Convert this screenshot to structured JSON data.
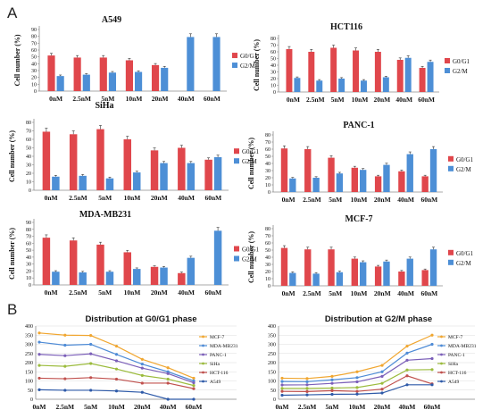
{
  "panel_labels": [
    "A",
    "B"
  ],
  "colors": {
    "g0": "#e0474c",
    "g2": "#4d8fd6",
    "err": "#333333",
    "axis": "#8c8c8c",
    "grid": "#dddddd",
    "line_colors": [
      "#f0a630",
      "#4e8bd6",
      "#7b5fb8",
      "#9bbb3c",
      "#c0504d",
      "#2e5aa8"
    ]
  },
  "chart_data": [
    {
      "type": "bar",
      "panel": "A",
      "title": "A549",
      "categories": [
        "0nM",
        "2.5nM",
        "5nM",
        "10nM",
        "20nM",
        "40nM",
        "60nM"
      ],
      "ylabel": "Cell number (%)",
      "ylim": [
        0,
        90
      ],
      "yticks": [
        0,
        10,
        20,
        30,
        40,
        50,
        60,
        70,
        80,
        90
      ],
      "series": [
        {
          "name": "G0/G1",
          "values": [
            52,
            49,
            49,
            45,
            38,
            null,
            null
          ]
        },
        {
          "name": "G2/M",
          "values": [
            22,
            24,
            27,
            28,
            34,
            79,
            79
          ]
        }
      ]
    },
    {
      "type": "bar",
      "panel": "A",
      "title": "HCT116",
      "categories": [
        "0nM",
        "2.5nM",
        "5nM",
        "10nM",
        "20nM",
        "40nM",
        "60nM"
      ],
      "ylabel": "Cell number (%)",
      "ylim": [
        0,
        80
      ],
      "yticks": [
        0,
        10,
        20,
        30,
        40,
        50,
        60,
        70,
        80
      ],
      "series": [
        {
          "name": "G0/G1",
          "values": [
            64,
            60,
            66,
            62,
            60,
            48,
            36
          ]
        },
        {
          "name": "G2/M",
          "values": [
            21,
            17,
            20,
            17,
            22,
            51,
            45
          ]
        }
      ]
    },
    {
      "type": "bar",
      "panel": "A",
      "title": "SiHa",
      "categories": [
        "0nM",
        "2.5nM",
        "5nM",
        "10nM",
        "20nM",
        "40nM",
        "60nM"
      ],
      "ylabel": "Cell number (%)",
      "ylim": [
        0,
        80
      ],
      "yticks": [
        0,
        10,
        20,
        30,
        40,
        50,
        60,
        70,
        80
      ],
      "series": [
        {
          "name": "G0/G1",
          "values": [
            69,
            66,
            72,
            60,
            47,
            50,
            36
          ]
        },
        {
          "name": "G2/M",
          "values": [
            16,
            17,
            14,
            21,
            32,
            32,
            39
          ]
        }
      ]
    },
    {
      "type": "bar",
      "panel": "A",
      "title": "PANC-1",
      "categories": [
        "0nM",
        "2.5nM",
        "5nM",
        "10nM",
        "20nM",
        "40nM",
        "60nM"
      ],
      "ylabel": "Cell number (%)",
      "ylim": [
        0,
        80
      ],
      "yticks": [
        0,
        10,
        20,
        30,
        40,
        50,
        60,
        70,
        80
      ],
      "series": [
        {
          "name": "G0/G1",
          "values": [
            61,
            60,
            48,
            34,
            22,
            29,
            22
          ]
        },
        {
          "name": "G2/M",
          "values": [
            19,
            20,
            26,
            31,
            38,
            53,
            60
          ]
        }
      ]
    },
    {
      "type": "bar",
      "panel": "A",
      "title": "MDA-MB231",
      "categories": [
        "0nM",
        "2.5nM",
        "5nM",
        "10nM",
        "20nM",
        "40nM",
        "60nM"
      ],
      "ylabel": "Cell number (%)",
      "ylim": [
        0,
        90
      ],
      "yticks": [
        0,
        10,
        20,
        30,
        40,
        50,
        60,
        70,
        80,
        90
      ],
      "series": [
        {
          "name": "G0/G1",
          "values": [
            68,
            64,
            58,
            47,
            26,
            17,
            null
          ]
        },
        {
          "name": "G2/M",
          "values": [
            19,
            18,
            19,
            23,
            25,
            39,
            78
          ]
        }
      ]
    },
    {
      "type": "bar",
      "panel": "A",
      "title": "MCF-7",
      "categories": [
        "0nM",
        "2.5nM",
        "5nM",
        "10nM",
        "20nM",
        "40nM",
        "60nM"
      ],
      "ylabel": "Cell number (%)",
      "ylim": [
        0,
        80
      ],
      "yticks": [
        0,
        10,
        20,
        30,
        40,
        50,
        60,
        70,
        80
      ],
      "series": [
        {
          "name": "G0/G1",
          "values": [
            53,
            51,
            51,
            38,
            27,
            20,
            22
          ]
        },
        {
          "name": "G2/M",
          "values": [
            18,
            17,
            19,
            33,
            34,
            38,
            51
          ]
        }
      ]
    },
    {
      "type": "line",
      "panel": "B",
      "title": "Distribution at G0/G1 phase",
      "categories": [
        "0nM",
        "2.5nM",
        "5nM",
        "10nM",
        "20nM",
        "40nM",
        "60nM"
      ],
      "ylim": [
        0,
        400
      ],
      "yticks": [
        0,
        50,
        100,
        150,
        200,
        250,
        300,
        350,
        400
      ],
      "series": [
        {
          "name": "MCF-7",
          "values": [
            362,
            350,
            348,
            290,
            218,
            172,
            115
          ]
        },
        {
          "name": "MDA-MB231",
          "values": [
            312,
            295,
            300,
            245,
            192,
            150,
            100
          ]
        },
        {
          "name": "PANC-1",
          "values": [
            245,
            238,
            248,
            210,
            170,
            140,
            90
          ]
        },
        {
          "name": "SiHa",
          "values": [
            185,
            180,
            195,
            165,
            130,
            110,
            75
          ]
        },
        {
          "name": "HCT-116",
          "values": [
            115,
            112,
            118,
            110,
            88,
            88,
            58
          ]
        },
        {
          "name": "A549",
          "values": [
            52,
            49,
            49,
            45,
            38,
            0,
            0
          ]
        }
      ]
    },
    {
      "type": "line",
      "panel": "B",
      "title": "Distribution at G2/M phase",
      "categories": [
        "0nM",
        "2.5nM",
        "5nM",
        "10nM",
        "20nM",
        "40nM",
        "60nM"
      ],
      "ylim": [
        0,
        400
      ],
      "yticks": [
        0,
        50,
        100,
        150,
        200,
        250,
        300,
        350,
        400
      ],
      "series": [
        {
          "name": "MCF-7",
          "values": [
            115,
            113,
            125,
            150,
            185,
            290,
            350
          ]
        },
        {
          "name": "MDA-MB231",
          "values": [
            97,
            96,
            106,
            118,
            150,
            252,
            300
          ]
        },
        {
          "name": "PANC-1",
          "values": [
            78,
            79,
            87,
            95,
            125,
            213,
            222
          ]
        },
        {
          "name": "SiHa",
          "values": [
            59,
            59,
            61,
            64,
            87,
            160,
            162
          ]
        },
        {
          "name": "HCT-116",
          "values": [
            43,
            42,
            47,
            43,
            55,
            128,
            84
          ]
        },
        {
          "name": "A549",
          "values": [
            22,
            24,
            27,
            28,
            34,
            79,
            79
          ]
        }
      ]
    }
  ]
}
